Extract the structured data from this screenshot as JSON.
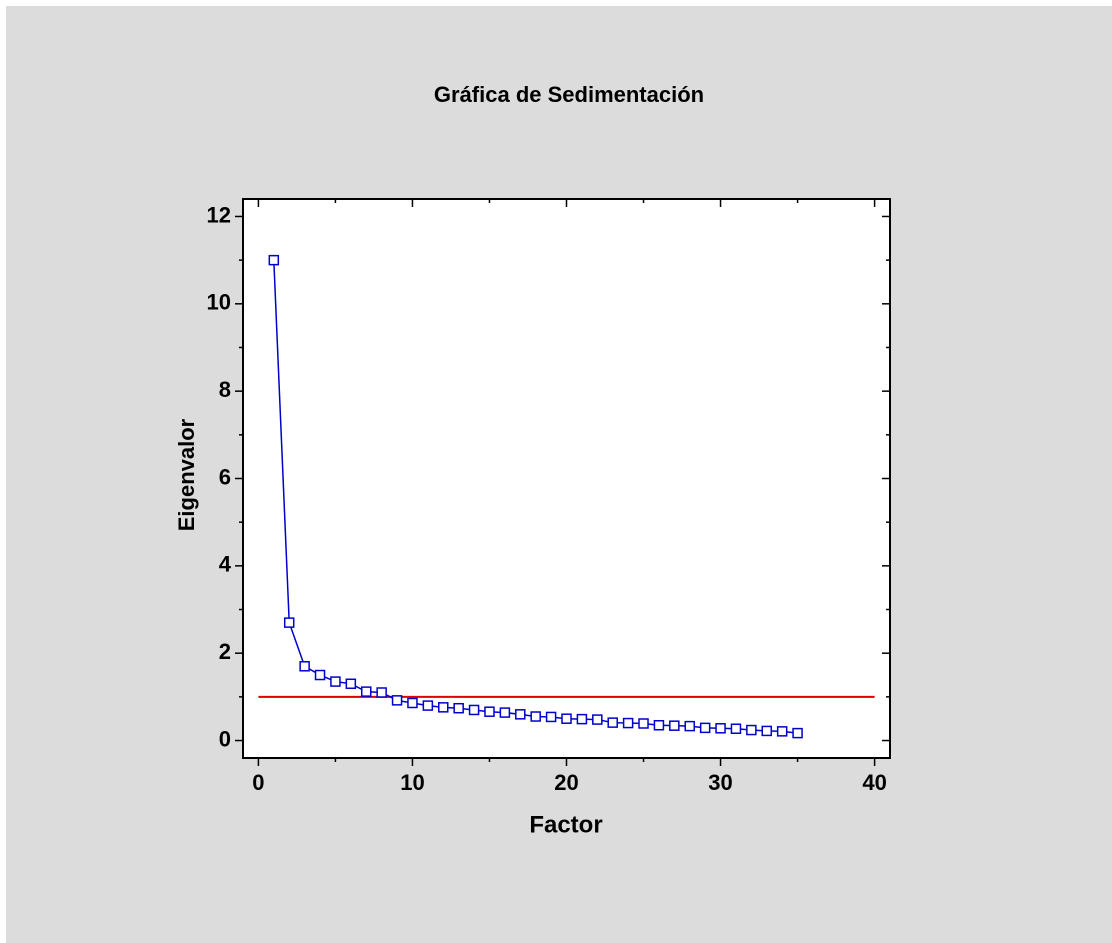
{
  "chart_data": {
    "type": "line",
    "title": "Gráfica de Sedimentación",
    "x_label": "Factor",
    "y_label": "Eigenvalor",
    "x": [
      1,
      2,
      3,
      4,
      5,
      6,
      7,
      8,
      9,
      10,
      11,
      12,
      13,
      14,
      15,
      16,
      17,
      18,
      19,
      20,
      21,
      22,
      23,
      24,
      25,
      26,
      27,
      28,
      29,
      30,
      31,
      32,
      33,
      34,
      35
    ],
    "series": [
      {
        "color": "#0000cc",
        "marker": "square",
        "values": [
          11.0,
          2.7,
          1.7,
          1.5,
          1.35,
          1.3,
          1.12,
          1.1,
          0.92,
          0.86,
          0.8,
          0.76,
          0.74,
          0.7,
          0.66,
          0.64,
          0.6,
          0.55,
          0.54,
          0.5,
          0.49,
          0.48,
          0.41,
          0.4,
          0.39,
          0.35,
          0.34,
          0.33,
          0.29,
          0.28,
          0.27,
          0.24,
          0.22,
          0.21,
          0.17
        ]
      }
    ],
    "reference_line": {
      "y": 1,
      "x": [
        0,
        40
      ],
      "color": "#e00000"
    },
    "xlim": [
      -1,
      41
    ],
    "ylim": [
      -0.4,
      12.4
    ],
    "xticks": [
      0,
      10,
      20,
      30,
      40
    ],
    "yticks": [
      0,
      2,
      4,
      6,
      8,
      10,
      12
    ],
    "x_minor_ticks": [
      5,
      15,
      25,
      35
    ],
    "y_minor_ticks": [
      1,
      3,
      5,
      7,
      9,
      11
    ]
  }
}
